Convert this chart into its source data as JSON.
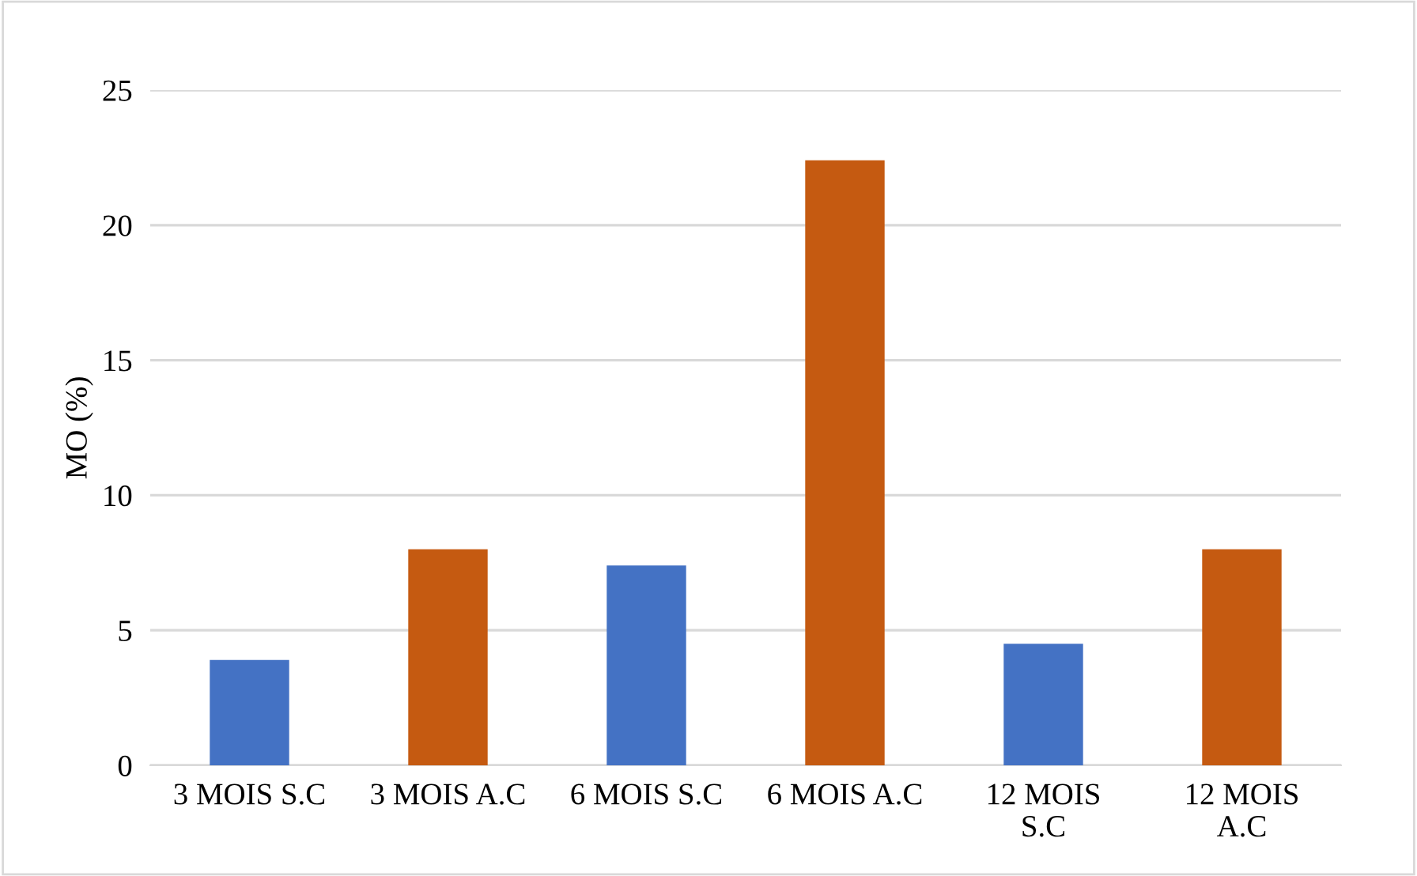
{
  "chart_data": {
    "type": "bar",
    "ylabel": "MO (%)",
    "categories": [
      "3 MOIS S.C",
      "3 MOIS A.C",
      "6 MOIS S.C",
      "6 MOIS A.C",
      "12 MOIS\nS.C",
      "12 MOIS\nA.C"
    ],
    "values": [
      3.9,
      8.0,
      7.4,
      22.4,
      4.5,
      8.0
    ],
    "colors": [
      "#4472c4",
      "#c55a11",
      "#4472c4",
      "#c55a11",
      "#4472c4",
      "#c55a11"
    ],
    "ylim": [
      0,
      25
    ],
    "yticks": [
      0,
      5,
      10,
      15,
      20,
      25
    ],
    "grid": "y",
    "legend": false
  }
}
